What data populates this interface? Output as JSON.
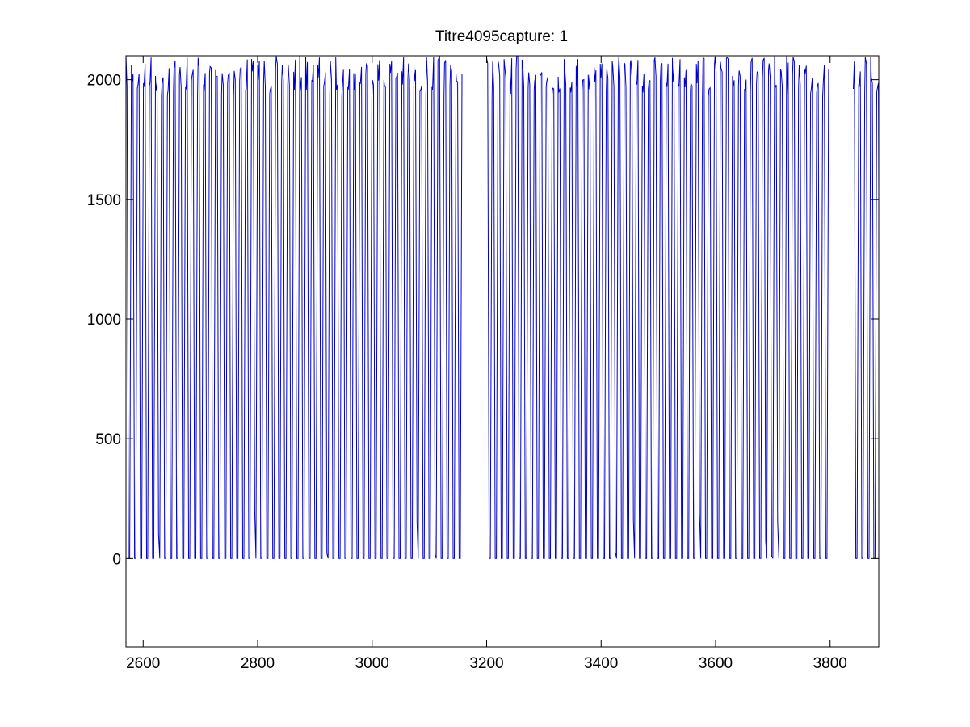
{
  "chart_data": {
    "type": "line",
    "title": "Titre4095capture: 1",
    "xlabel": "",
    "ylabel": "",
    "xlim": [
      2570,
      3885
    ],
    "ylim": [
      -370,
      2100
    ],
    "xticks": [
      2600,
      2800,
      3000,
      3200,
      3400,
      3600,
      3800
    ],
    "yticks": [
      0,
      500,
      1000,
      1500,
      2000
    ],
    "grid": false,
    "line_color": "#0000cc",
    "gaps": [
      [
        3160,
        3200
      ],
      [
        3800,
        3840
      ]
    ],
    "series": [
      {
        "period": 10.5,
        "low": 0,
        "high": 2100,
        "x_start": 2570,
        "x_end": 3885
      }
    ]
  }
}
